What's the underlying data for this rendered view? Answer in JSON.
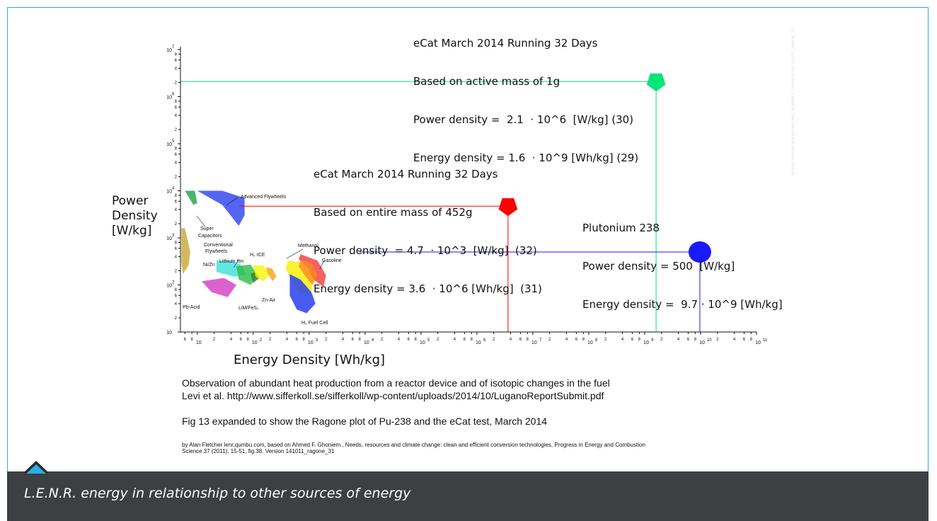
{
  "caption": "L.E.N.R. energy in relationship to other sources of energy",
  "watermark": "by Alan Fletcher lenr.qumbu.com, adapted F. Ghoniem ver 141011_ragone_31",
  "ecat_1g": {
    "lines": [
      "eCat March 2014 Running 32 Days",
      "Based on active mass of 1g",
      "Power density =  2.1  · 10^6  [W/kg] (30)",
      "Energy density = 1.6  · 10^9 [Wh/kg] (29)"
    ],
    "marker_color": "#00e676",
    "energy_wh_per_kg": 1600000000,
    "power_w_per_kg": 2100000
  },
  "ecat_452g": {
    "lines": [
      "eCat March 2014 Running 32 Days",
      "Based on entire mass of 452g",
      "Power density  = 4.7  · 10^3  [W/kg]  (32)",
      "Energy density = 3.6  · 10^6 [Wh/kg]  (31)"
    ],
    "marker_color": "#ff0000",
    "energy_wh_per_kg": 3600000,
    "power_w_per_kg": 4700
  },
  "plutonium": {
    "lines": [
      "Plutonium 238",
      "Power density = 500  [W/kg]",
      "Energy density =  9.7 · 10^9 [Wh/kg]"
    ],
    "marker_color": "#1a1aff",
    "energy_wh_per_kg": 9700000000,
    "power_w_per_kg": 500
  },
  "chart_data": {
    "type": "scatter",
    "xlabel": "Energy Density [Wh/kg]",
    "ylabel_lines": [
      "Power",
      "Density",
      "[W/kg]"
    ],
    "x_scale": "log",
    "y_scale": "log",
    "xlim": [
      5,
      100000000000
    ],
    "ylim": [
      10,
      10000000
    ],
    "x_major_ticks": [
      {
        "value": 10,
        "base": "10",
        "exp": ""
      },
      {
        "value": 100,
        "base": "10",
        "exp": "2"
      },
      {
        "value": 1000,
        "base": "10",
        "exp": "3"
      },
      {
        "value": 10000,
        "base": "10",
        "exp": "4"
      },
      {
        "value": 100000,
        "base": "10",
        "exp": "5"
      },
      {
        "value": 1000000,
        "base": "10",
        "exp": "6"
      },
      {
        "value": 10000000,
        "base": "10",
        "exp": "7"
      },
      {
        "value": 100000000,
        "base": "10",
        "exp": "8"
      },
      {
        "value": 1000000000,
        "base": "10",
        "exp": "9"
      },
      {
        "value": 10000000000,
        "base": "10",
        "exp": "10"
      },
      {
        "value": 100000000000,
        "base": "10",
        "exp": "11"
      }
    ],
    "y_major_ticks": [
      {
        "value": 10,
        "base": "10",
        "exp": ""
      },
      {
        "value": 100,
        "base": "10",
        "exp": "2"
      },
      {
        "value": 1000,
        "base": "10",
        "exp": "3"
      },
      {
        "value": 10000,
        "base": "10",
        "exp": "4"
      },
      {
        "value": 100000,
        "base": "10",
        "exp": "5"
      },
      {
        "value": 1000000,
        "base": "10",
        "exp": "6"
      },
      {
        "value": 10000000,
        "base": "10",
        "exp": "7"
      }
    ],
    "minor_tick_labels": [
      "2",
      "4",
      "6",
      "8"
    ],
    "points": [
      {
        "name": "eCat (1g active mass)",
        "x": 1600000000,
        "y": 2100000,
        "color": "#00e676",
        "shape": "pentagon"
      },
      {
        "name": "eCat (452g entire mass)",
        "x": 3600000,
        "y": 4700,
        "color": "#ff0000",
        "shape": "pentagon"
      },
      {
        "name": "Plutonium 238",
        "x": 9700000000,
        "y": 500,
        "color": "#1a1aff",
        "shape": "circle"
      }
    ],
    "technology_regions": [
      {
        "label": "Advanced Flywheels",
        "color": "#2b3ff0",
        "poly": [
          [
            10,
            10000
          ],
          [
            28,
            10000
          ],
          [
            70,
            7000
          ],
          [
            70,
            3000
          ],
          [
            55,
            1800
          ],
          [
            28,
            5000
          ]
        ]
      },
      {
        "label": "Super Capacitors",
        "color": "#1fa14a",
        "poly": [
          [
            6,
            10000
          ],
          [
            9,
            10000
          ],
          [
            10,
            5500
          ],
          [
            8.5,
            5000
          ]
        ]
      },
      {
        "label": "Conventional Flywheels",
        "color": "#c7a634",
        "poly": [
          [
            5.2,
            1600
          ],
          [
            6,
            1600
          ],
          [
            7.5,
            500
          ],
          [
            7,
            260
          ],
          [
            5.5,
            170
          ],
          [
            5.2,
            300
          ]
        ]
      },
      {
        "label": "Ni/Zn",
        "color": "#3de0d8",
        "poly": [
          [
            22,
            330
          ],
          [
            45,
            320
          ],
          [
            65,
            250
          ],
          [
            75,
            160
          ],
          [
            45,
            150
          ],
          [
            22,
            190
          ]
        ]
      },
      {
        "label": "Lithium Ion",
        "color": "#2bbd48",
        "poly": [
          [
            50,
            250
          ],
          [
            90,
            270
          ],
          [
            120,
            160
          ],
          [
            90,
            100
          ],
          [
            55,
            130
          ]
        ]
      },
      {
        "label": "Pb-Acid",
        "color": "#d13bc2",
        "poly": [
          [
            12,
            120
          ],
          [
            30,
            140
          ],
          [
            50,
            100
          ],
          [
            35,
            55
          ],
          [
            18,
            70
          ]
        ]
      },
      {
        "label": "LiM/FeS2",
        "color": "#3b7c2e",
        "poly": [
          [
            90,
            170
          ],
          [
            110,
            190
          ],
          [
            130,
            140
          ],
          [
            100,
            110
          ]
        ]
      },
      {
        "label": "H2 ICE",
        "color": "#f4f800",
        "poly": [
          [
            100,
            260
          ],
          [
            150,
            260
          ],
          [
            200,
            170
          ],
          [
            150,
            120
          ],
          [
            110,
            150
          ]
        ]
      },
      {
        "label": "Zn-Air",
        "color": "#f6a21c",
        "poly": [
          [
            170,
            240
          ],
          [
            220,
            220
          ],
          [
            260,
            150
          ],
          [
            220,
            120
          ],
          [
            180,
            180
          ]
        ]
      },
      {
        "label": "Methanol",
        "color": "#f5f000",
        "poly": [
          [
            420,
            330
          ],
          [
            700,
            300
          ],
          [
            1200,
            150
          ],
          [
            1100,
            70
          ],
          [
            700,
            60
          ],
          [
            500,
            120
          ],
          [
            380,
            220
          ]
        ]
      },
      {
        "label": "Gasoline",
        "color": "#f23a3a",
        "poly": [
          [
            700,
            450
          ],
          [
            1400,
            330
          ],
          [
            2000,
            160
          ],
          [
            1800,
            90
          ],
          [
            1200,
            130
          ],
          [
            900,
            250
          ],
          [
            650,
            350
          ]
        ]
      },
      {
        "label": "Gasoline overlap",
        "color": "#ff8a1e",
        "poly": [
          [
            700,
            330
          ],
          [
            1100,
            300
          ],
          [
            1400,
            160
          ],
          [
            1150,
            100
          ],
          [
            800,
            170
          ],
          [
            650,
            250
          ]
        ]
      },
      {
        "label": "H2 Fuel Cell",
        "color": "#2840f0",
        "poly": [
          [
            450,
            170
          ],
          [
            700,
            130
          ],
          [
            1100,
            70
          ],
          [
            1300,
            40
          ],
          [
            900,
            25
          ],
          [
            600,
            30
          ],
          [
            450,
            60
          ]
        ]
      }
    ],
    "technology_labels": [
      {
        "text": "Advanced Flywheels"
      },
      {
        "text": "Super"
      },
      {
        "text": "Capacitors"
      },
      {
        "text": "Conventional"
      },
      {
        "text": "Flywheels"
      },
      {
        "text": "H₂ ICE"
      },
      {
        "text": "Methanol"
      },
      {
        "text": "Gasoline"
      },
      {
        "text": "Lithium Ion"
      },
      {
        "text": "Ni/Zn"
      },
      {
        "text": "Pb-Acid"
      },
      {
        "text": "LiM/FeS₂"
      },
      {
        "text": "Zn-Air"
      },
      {
        "text": "H₂ Fuel Cell"
      }
    ]
  },
  "references": {
    "line1": "Observation of abundant heat production from a reactor device and of isotopic changes in the fuel",
    "line2": "Levi et al. http://www.sifferkoll.se/sifferkoll/wp-content/uploads/2014/10/LuganoReportSubmit.pdf",
    "line3": "Fig 13 expanded to show the Ragone plot of Pu-238 and the eCat test, March 2014",
    "byline1": "by Alan Fletcher lenr.qumbu.com, based on  Ahmed F. Ghoniem , Needs, resources and climate change: clean and efficient conversion  technologies, Progress in Energy and Combustion",
    "byline2": "Science 37 (2011), 15-51, fig.38.  Version 141011_ragone_31"
  },
  "colors": {
    "frame_border": "#29aee6",
    "caption_bar": "#3c4043",
    "caret": "#29aee6"
  }
}
